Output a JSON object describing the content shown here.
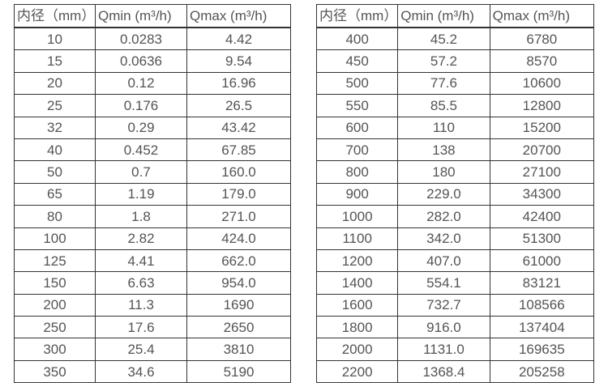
{
  "page": {
    "background_color": "#ffffff",
    "border_color": "#333333",
    "text_color": "#545454"
  },
  "tables": [
    {
      "headers": [
        "内径（mm）",
        "Qmin (m³/h)",
        "Qmax (m³/h)"
      ],
      "rows": [
        [
          "10",
          "0.0283",
          "4.42"
        ],
        [
          "15",
          "0.0636",
          "9.54"
        ],
        [
          "20",
          "0.12",
          "16.96"
        ],
        [
          "25",
          "0.176",
          "26.5"
        ],
        [
          "32",
          "0.29",
          "43.42"
        ],
        [
          "40",
          "0.452",
          "67.85"
        ],
        [
          "50",
          "0.7",
          "160.0"
        ],
        [
          "65",
          "1.19",
          "179.0"
        ],
        [
          "80",
          "1.8",
          "271.0"
        ],
        [
          "100",
          "2.82",
          "424.0"
        ],
        [
          "125",
          "4.41",
          "662.0"
        ],
        [
          "150",
          "6.63",
          "954.0"
        ],
        [
          "200",
          "11.3",
          "1690"
        ],
        [
          "250",
          "17.6",
          "2650"
        ],
        [
          "300",
          "25.4",
          "3810"
        ],
        [
          "350",
          "34.6",
          "5190"
        ]
      ]
    },
    {
      "headers": [
        "内径（mm）",
        "Qmin (m³/h)",
        "Qmax (m³/h)"
      ],
      "rows": [
        [
          "400",
          "45.2",
          "6780"
        ],
        [
          "450",
          "57.2",
          "8570"
        ],
        [
          "500",
          "77.6",
          "10600"
        ],
        [
          "550",
          "85.5",
          "12800"
        ],
        [
          "600",
          "110",
          "15200"
        ],
        [
          "700",
          "138",
          "20700"
        ],
        [
          "800",
          "180",
          "27100"
        ],
        [
          "900",
          "229.0",
          "34300"
        ],
        [
          "1000",
          "282.0",
          "42400"
        ],
        [
          "1100",
          "342.0",
          "51300"
        ],
        [
          "1200",
          "407.0",
          "61000"
        ],
        [
          "1400",
          "554.1",
          "83121"
        ],
        [
          "1600",
          "732.7",
          "108566"
        ],
        [
          "1800",
          "916.0",
          "137404"
        ],
        [
          "2000",
          "1131.0",
          "169635"
        ],
        [
          "2200",
          "1368.4",
          "205258"
        ]
      ]
    }
  ]
}
